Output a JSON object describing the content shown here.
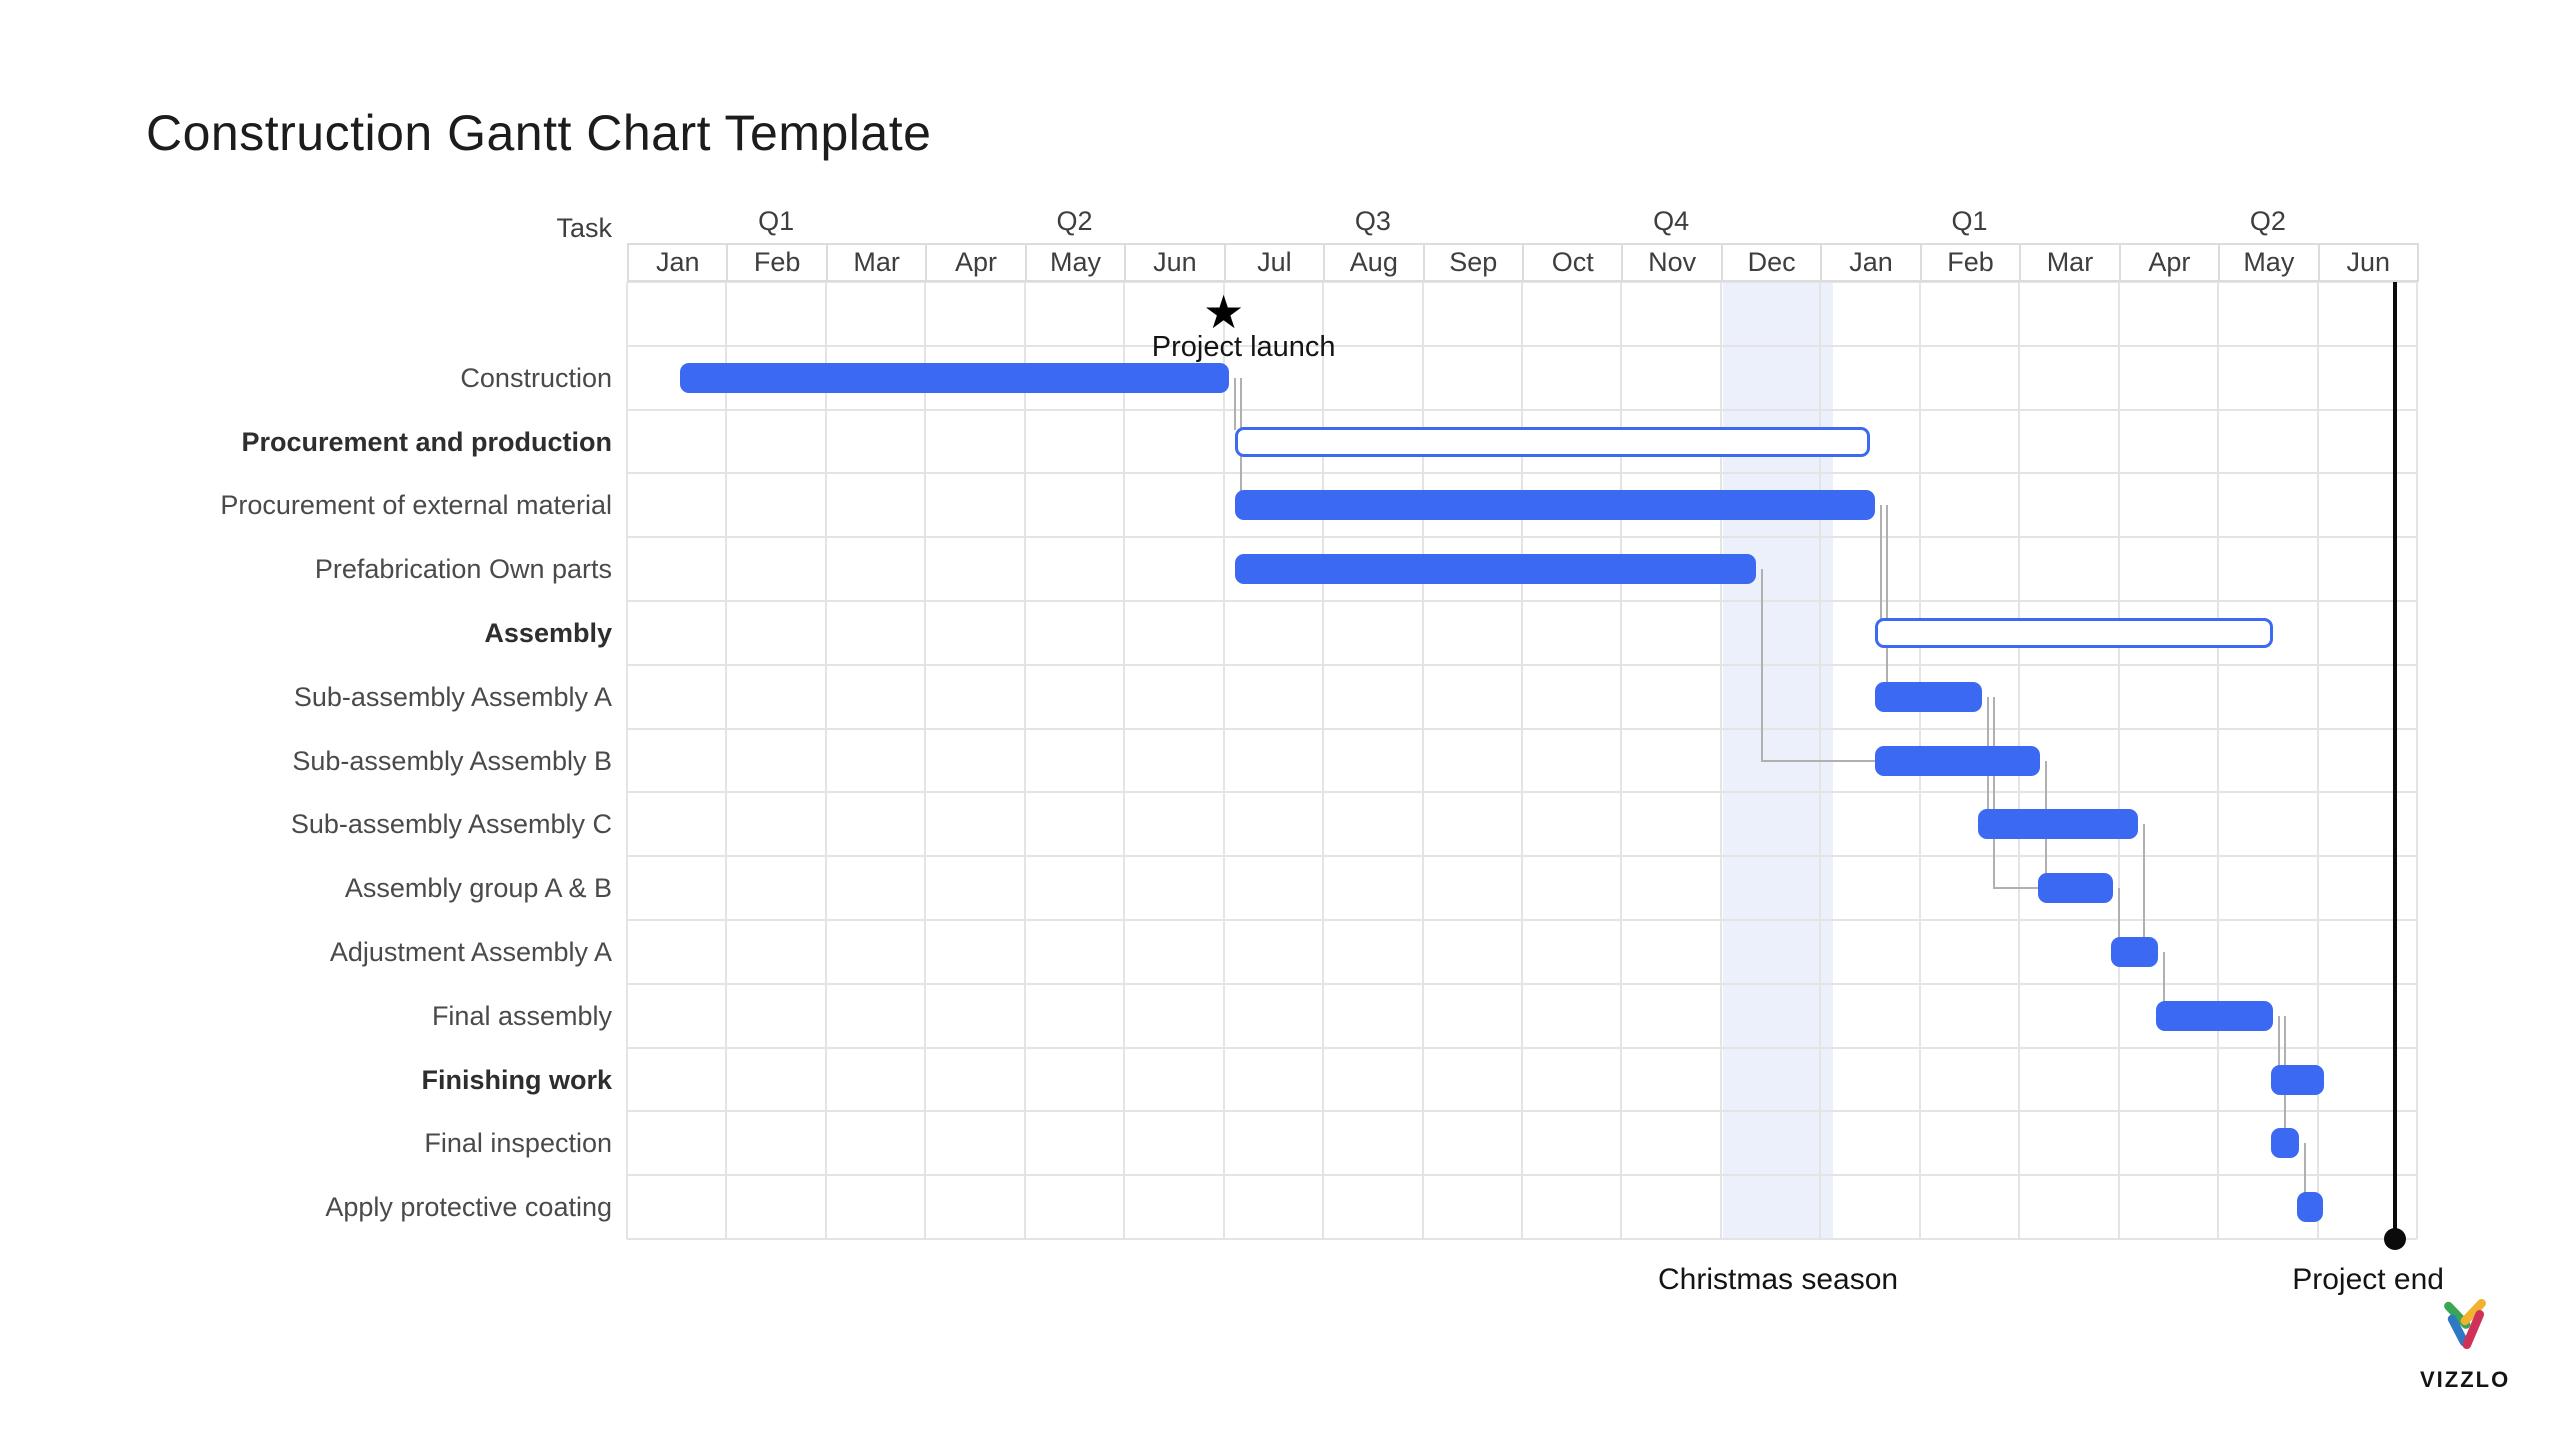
{
  "title": "Construction Gantt Chart Template",
  "watermark": {
    "text": "VIZZLO"
  },
  "colors": {
    "bar_blue": "#3b69f1",
    "outline_blue": "#3b69f1",
    "highlight_band": "#e8edfa",
    "grid": "#e4e4e4",
    "connector": "#b0b0b0",
    "text": "#3e3e3e",
    "marker_black": "#0b0b0b",
    "logo_green": "#3aa655",
    "logo_yellow": "#f1b32f",
    "logo_blue": "#2f79c4",
    "logo_red": "#d03159"
  },
  "chart_data": {
    "type": "gantt",
    "title": "Construction Gantt Chart Template",
    "task_column_label": "Task",
    "grid": true,
    "legend": false,
    "months": [
      "Jan",
      "Feb",
      "Mar",
      "Apr",
      "May",
      "Jun",
      "Jul",
      "Aug",
      "Sep",
      "Oct",
      "Nov",
      "Dec",
      "Jan",
      "Feb",
      "Mar",
      "Apr",
      "May",
      "Jun"
    ],
    "quarters": [
      {
        "label": "Q1",
        "span": 3
      },
      {
        "label": "Q2",
        "span": 3
      },
      {
        "label": "Q3",
        "span": 3
      },
      {
        "label": "Q4",
        "span": 3
      },
      {
        "label": "Q1",
        "span": 3
      },
      {
        "label": "Q2",
        "span": 3
      }
    ],
    "tasks": [
      {
        "label": "Construction",
        "style": "bar",
        "bold": false,
        "start_month": 0.53,
        "end_month": 6.05
      },
      {
        "label": "Procurement and production",
        "style": "summary-outline",
        "bold": true,
        "start_month": 6.11,
        "end_month": 12.5
      },
      {
        "label": "Procurement of external material",
        "style": "bar",
        "bold": false,
        "start_month": 6.11,
        "end_month": 12.55
      },
      {
        "label": "Prefabrication Own parts",
        "style": "bar",
        "bold": false,
        "start_month": 6.11,
        "end_month": 11.35
      },
      {
        "label": "Assembly",
        "style": "summary-outline",
        "bold": true,
        "start_month": 12.55,
        "end_month": 16.55
      },
      {
        "label": "Sub-assembly Assembly A",
        "style": "bar",
        "bold": false,
        "start_month": 12.55,
        "end_month": 13.63
      },
      {
        "label": "Sub-assembly Assembly B",
        "style": "bar",
        "bold": false,
        "start_month": 12.55,
        "end_month": 14.21
      },
      {
        "label": "Sub-assembly Assembly C",
        "style": "bar",
        "bold": false,
        "start_month": 13.59,
        "end_month": 15.19
      },
      {
        "label": "Assembly group A & B",
        "style": "bar",
        "bold": false,
        "start_month": 14.19,
        "end_month": 14.94
      },
      {
        "label": "Adjustment Assembly A",
        "style": "bar",
        "bold": false,
        "start_month": 14.92,
        "end_month": 15.4
      },
      {
        "label": "Final assembly",
        "style": "bar",
        "bold": false,
        "start_month": 15.38,
        "end_month": 16.55
      },
      {
        "label": "Finishing work",
        "style": "bar",
        "bold": true,
        "start_month": 16.53,
        "end_month": 17.06
      },
      {
        "label": "Final inspection",
        "style": "bar",
        "bold": false,
        "start_month": 16.53,
        "end_month": 16.81
      },
      {
        "label": "Apply protective coating",
        "style": "bar",
        "bold": false,
        "start_month": 16.79,
        "end_month": 17.05
      }
    ],
    "milestones": [
      {
        "label": "Project launch",
        "month": 6.0,
        "symbol": "star"
      }
    ],
    "highlight_ranges": [
      {
        "label": "Christmas season",
        "start_month": 11.02,
        "end_month": 12.13
      }
    ],
    "markers": [
      {
        "label": "Project end",
        "month": 17.78,
        "symbol": "line-dot"
      }
    ],
    "dependencies": [
      {
        "from": 0,
        "to": 1
      },
      {
        "from": 0,
        "to": 2
      },
      {
        "from": 2,
        "to": 4
      },
      {
        "from": 2,
        "to": 5
      },
      {
        "from": 3,
        "to": 6
      },
      {
        "from": 5,
        "to": 7
      },
      {
        "from": 5,
        "to": 8
      },
      {
        "from": 6,
        "to": 8
      },
      {
        "from": 7,
        "to": 9
      },
      {
        "from": 8,
        "to": 9
      },
      {
        "from": 9,
        "to": 10
      },
      {
        "from": 10,
        "to": 11
      },
      {
        "from": 10,
        "to": 12
      },
      {
        "from": 12,
        "to": 13
      }
    ]
  }
}
